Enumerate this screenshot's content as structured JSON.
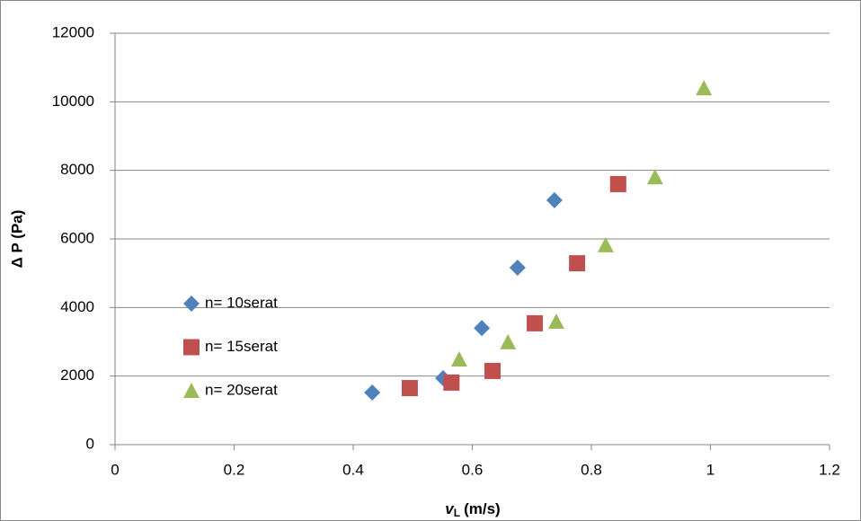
{
  "chart_data": {
    "type": "scatter",
    "xlabel": {
      "symbol": "v",
      "sub": "L",
      "unit": "(m/s)"
    },
    "ylabel": "Δ P (Pa)",
    "xlim": [
      0,
      1.2
    ],
    "xticks": [
      0,
      0.2,
      0.4,
      0.6,
      0.8,
      1,
      1.2
    ],
    "ylim": [
      0,
      12000
    ],
    "yticks": [
      0,
      2000,
      4000,
      6000,
      8000,
      10000,
      12000
    ],
    "grid": true,
    "legend": "left",
    "series": [
      {
        "name": "n= 10serat",
        "color": "#4f81bd",
        "marker": "diamond",
        "x": [
          0.432,
          0.551,
          0.616,
          0.676,
          0.738
        ],
        "values": [
          1520,
          1940,
          3400,
          5160,
          7130
        ]
      },
      {
        "name": "n= 15serat",
        "color": "#c0504d",
        "marker": "square",
        "x": [
          0.495,
          0.565,
          0.634,
          0.705,
          0.776,
          0.845
        ],
        "values": [
          1650,
          1810,
          2150,
          3540,
          5290,
          7600
        ]
      },
      {
        "name": "n= 20serat",
        "color": "#9bbb59",
        "marker": "triangle",
        "x": [
          0.578,
          0.66,
          0.741,
          0.824,
          0.907,
          0.989
        ],
        "values": [
          2490,
          2990,
          3590,
          5820,
          7800,
          10400
        ]
      }
    ]
  }
}
